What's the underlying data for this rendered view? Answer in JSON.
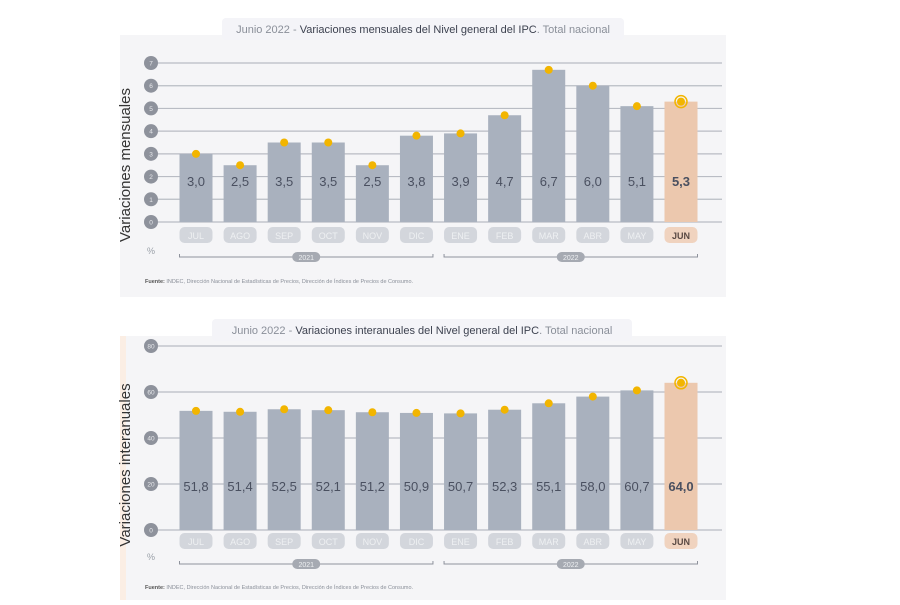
{
  "chart_data": [
    {
      "type": "bar",
      "title_prefix": "Junio 2022 - ",
      "title_main": "Variaciones mensuales del Nivel general del IPC",
      "title_suffix": ". Total nacional",
      "ylabel": "Variaciones mensuales",
      "unit": "%",
      "ylim": [
        0,
        7
      ],
      "yticks": [
        0,
        1,
        2,
        3,
        4,
        5,
        6,
        7
      ],
      "grid": true,
      "categories": [
        "JUL",
        "AGO",
        "SEP",
        "OCT",
        "NOV",
        "DIC",
        "ENE",
        "FEB",
        "MAR",
        "ABR",
        "MAY",
        "JUN"
      ],
      "values": [
        3.0,
        2.5,
        3.5,
        3.5,
        2.5,
        3.8,
        3.9,
        4.7,
        6.7,
        6.0,
        5.1,
        5.3
      ],
      "value_labels": [
        "3,0",
        "2,5",
        "3,5",
        "3,5",
        "2,5",
        "3,8",
        "3,9",
        "4,7",
        "6,7",
        "6,0",
        "5,1",
        "5,3"
      ],
      "years": [
        {
          "label": "2021",
          "span": [
            "JUL",
            "DIC"
          ]
        },
        {
          "label": "2022",
          "span": [
            "ENE",
            "JUN"
          ]
        }
      ],
      "highlight": "JUN",
      "source_label": "Fuente:",
      "source_text": " INDEC, Dirección Nacional de Estadísticas de Precios, Dirección de Índices de Precios de Consumo."
    },
    {
      "type": "bar",
      "title_prefix": "Junio 2022 - ",
      "title_main": "Variaciones interanuales del Nivel general del IPC",
      "title_suffix": ". Total nacional",
      "ylabel": "Variaciones interanuales",
      "unit": "%",
      "ylim": [
        0,
        80
      ],
      "yticks": [
        0,
        20,
        40,
        60,
        80
      ],
      "grid": true,
      "categories": [
        "JUL",
        "AGO",
        "SEP",
        "OCT",
        "NOV",
        "DIC",
        "ENE",
        "FEB",
        "MAR",
        "ABR",
        "MAY",
        "JUN"
      ],
      "values": [
        51.8,
        51.4,
        52.5,
        52.1,
        51.2,
        50.9,
        50.7,
        52.3,
        55.1,
        58.0,
        60.7,
        64.0
      ],
      "value_labels": [
        "51,8",
        "51,4",
        "52,5",
        "52,1",
        "51,2",
        "50,9",
        "50,7",
        "52,3",
        "55,1",
        "58,0",
        "60,7",
        "64,0"
      ],
      "years": [
        {
          "label": "2021",
          "span": [
            "JUL",
            "DIC"
          ]
        },
        {
          "label": "2022",
          "span": [
            "ENE",
            "JUN"
          ]
        }
      ],
      "highlight": "JUN",
      "source_label": "Fuente:",
      "source_text": " INDEC, Dirección Nacional de Estadísticas de Precios, Dirección de Índices de Precios de Consumo."
    }
  ],
  "colors": {
    "bar": "#a9b1be",
    "bar_highlight": "#ecc8ae",
    "dot": "#f2b500",
    "panel": "#f5f5f7",
    "grid": "#b9bcc4",
    "tick_badge": "#8e929c",
    "value_text": "#4a5060",
    "month_pill": "#d3d6dc",
    "month_pill_highlight": "#f0d3bf"
  }
}
